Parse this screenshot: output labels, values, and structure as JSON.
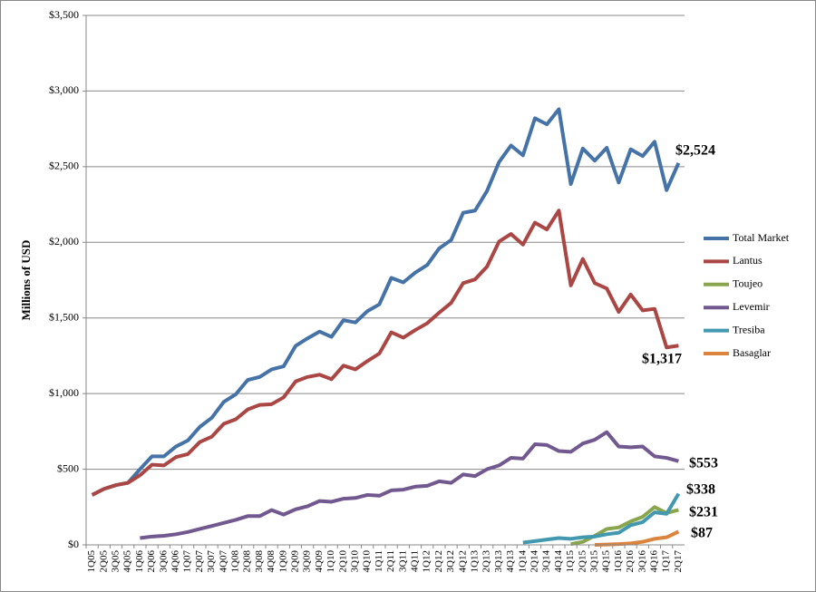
{
  "chart_data": {
    "type": "line",
    "y_label": "Millions of USD",
    "categories": [
      "1Q05",
      "2Q05",
      "3Q05",
      "4Q05",
      "1Q06",
      "2Q06",
      "3Q06",
      "4Q06",
      "1Q07",
      "2Q07",
      "3Q07",
      "4Q07",
      "1Q08",
      "2Q08",
      "3Q08",
      "4Q08",
      "1Q09",
      "2Q09",
      "3Q09",
      "4Q09",
      "1Q10",
      "2Q10",
      "3Q10",
      "4Q10",
      "1Q11",
      "2Q11",
      "3Q11",
      "4Q11",
      "1Q12",
      "2Q12",
      "3Q12",
      "4Q12",
      "1Q13",
      "2Q13",
      "3Q13",
      "4Q13",
      "1Q14",
      "2Q14",
      "3Q14",
      "4Q14",
      "1Q15",
      "2Q15",
      "3Q15",
      "4Q15",
      "1Q16",
      "2Q16",
      "3Q16",
      "4Q16",
      "1Q17",
      "2Q17"
    ],
    "series": [
      {
        "name": "Total Market",
        "color": "#4572a7",
        "end_label": "$2,524",
        "values": [
          330,
          370,
          395,
          410,
          500,
          585,
          585,
          650,
          690,
          780,
          840,
          945,
          995,
          1090,
          1110,
          1160,
          1180,
          1315,
          1365,
          1410,
          1375,
          1485,
          1470,
          1545,
          1590,
          1765,
          1735,
          1800,
          1850,
          1960,
          2015,
          2195,
          2210,
          2340,
          2530,
          2640,
          2575,
          2820,
          2780,
          2880,
          2385,
          2620,
          2540,
          2625,
          2395,
          2615,
          2570,
          2665,
          2345,
          2524
        ]
      },
      {
        "name": "Lantus",
        "color": "#aa4643",
        "end_label": "$1,317",
        "values": [
          330,
          370,
          395,
          410,
          460,
          530,
          525,
          580,
          600,
          680,
          715,
          800,
          830,
          895,
          925,
          930,
          975,
          1080,
          1110,
          1125,
          1095,
          1185,
          1160,
          1215,
          1265,
          1405,
          1370,
          1420,
          1465,
          1535,
          1600,
          1730,
          1755,
          1840,
          2005,
          2055,
          1985,
          2130,
          2085,
          2210,
          1715,
          1890,
          1730,
          1695,
          1540,
          1655,
          1550,
          1560,
          1305,
          1317
        ]
      },
      {
        "name": "Toujeo",
        "color": "#89a54e",
        "end_label": "$231",
        "values": [
          null,
          null,
          null,
          null,
          null,
          null,
          null,
          null,
          null,
          null,
          null,
          null,
          null,
          null,
          null,
          null,
          null,
          null,
          null,
          null,
          null,
          null,
          null,
          null,
          null,
          null,
          null,
          null,
          null,
          null,
          null,
          null,
          null,
          null,
          null,
          null,
          null,
          null,
          null,
          null,
          5,
          20,
          60,
          105,
          115,
          155,
          185,
          250,
          210,
          231
        ]
      },
      {
        "name": "Levemir",
        "color": "#71588f",
        "end_label": "$553",
        "values": [
          null,
          null,
          null,
          null,
          45,
          55,
          60,
          70,
          85,
          105,
          125,
          145,
          165,
          190,
          190,
          230,
          200,
          235,
          255,
          290,
          285,
          305,
          310,
          330,
          325,
          360,
          365,
          385,
          390,
          420,
          410,
          465,
          455,
          500,
          525,
          575,
          570,
          665,
          660,
          620,
          615,
          670,
          695,
          745,
          650,
          645,
          650,
          585,
          575,
          553
        ]
      },
      {
        "name": "Tresiba",
        "color": "#4198af",
        "end_label": "$338",
        "values": [
          null,
          null,
          null,
          null,
          null,
          null,
          null,
          null,
          null,
          null,
          null,
          null,
          null,
          null,
          null,
          null,
          null,
          null,
          null,
          null,
          null,
          null,
          null,
          null,
          null,
          null,
          null,
          null,
          null,
          null,
          null,
          null,
          null,
          null,
          null,
          null,
          15,
          25,
          35,
          45,
          40,
          50,
          55,
          70,
          80,
          130,
          150,
          215,
          205,
          338
        ]
      },
      {
        "name": "Basaglar",
        "color": "#db843d",
        "end_label": "$87",
        "values": [
          null,
          null,
          null,
          null,
          null,
          null,
          null,
          null,
          null,
          null,
          null,
          null,
          null,
          null,
          null,
          null,
          null,
          null,
          null,
          null,
          null,
          null,
          null,
          null,
          null,
          null,
          null,
          null,
          null,
          null,
          null,
          null,
          null,
          null,
          null,
          null,
          null,
          null,
          null,
          null,
          null,
          null,
          0,
          2,
          5,
          10,
          20,
          40,
          50,
          87
        ]
      }
    ],
    "ylim": [
      0,
      3500
    ],
    "yticks": [
      {
        "value": 0,
        "label": "$0"
      },
      {
        "value": 500,
        "label": "$500"
      },
      {
        "value": 1000,
        "label": "$1,000"
      },
      {
        "value": 1500,
        "label": "$1,500"
      },
      {
        "value": 2000,
        "label": "$2,000"
      },
      {
        "value": 2500,
        "label": "$2,500"
      },
      {
        "value": 3000,
        "label": "$3,000"
      },
      {
        "value": 3500,
        "label": "$3,500"
      }
    ],
    "grid": true
  }
}
